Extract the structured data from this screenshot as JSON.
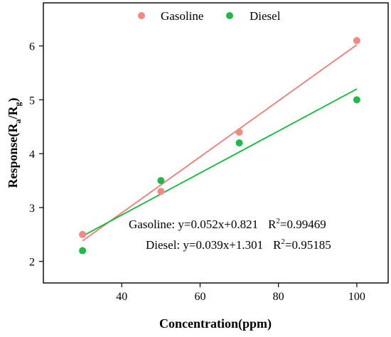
{
  "chart_data": {
    "type": "scatter",
    "title": "",
    "xlabel": "Concentration(ppm)",
    "ylabel": {
      "prefix": "Response(R",
      "sub_a": "a",
      "slash": "/R",
      "sub_g": "g",
      "suffix": ")"
    },
    "xlim": [
      20,
      108
    ],
    "ylim": [
      1.6,
      6.8
    ],
    "xticks": [
      40,
      60,
      80,
      100
    ],
    "yticks": [
      2,
      3,
      4,
      5,
      6
    ],
    "grid": false,
    "legend_position": "top-center",
    "x": [
      30,
      50,
      70,
      100
    ],
    "series": [
      {
        "name": "Gasoline",
        "color": "#f07c78",
        "marker_color": "#f08a84",
        "values": [
          2.5,
          3.3,
          4.4,
          6.1
        ],
        "fit": {
          "slope": 0.052,
          "intercept": 0.821,
          "range": [
            30,
            100
          ]
        },
        "annotation": {
          "equation": "Gasoline: y=0.052x+0.821",
          "r_label": "R",
          "r_sup": "2",
          "r_value": "=0.99469"
        }
      },
      {
        "name": "Diesel",
        "color": "#12b83a",
        "marker_color": "#1fb84a",
        "values": [
          2.2,
          3.5,
          4.2,
          5.0
        ],
        "fit": {
          "slope": 0.039,
          "intercept": 1.301,
          "range": [
            30,
            100
          ]
        },
        "annotation": {
          "equation": "Diesel: y=0.039x+1.301",
          "r_label": "R",
          "r_sup": "2",
          "r_value": "=0.95185"
        }
      }
    ]
  }
}
